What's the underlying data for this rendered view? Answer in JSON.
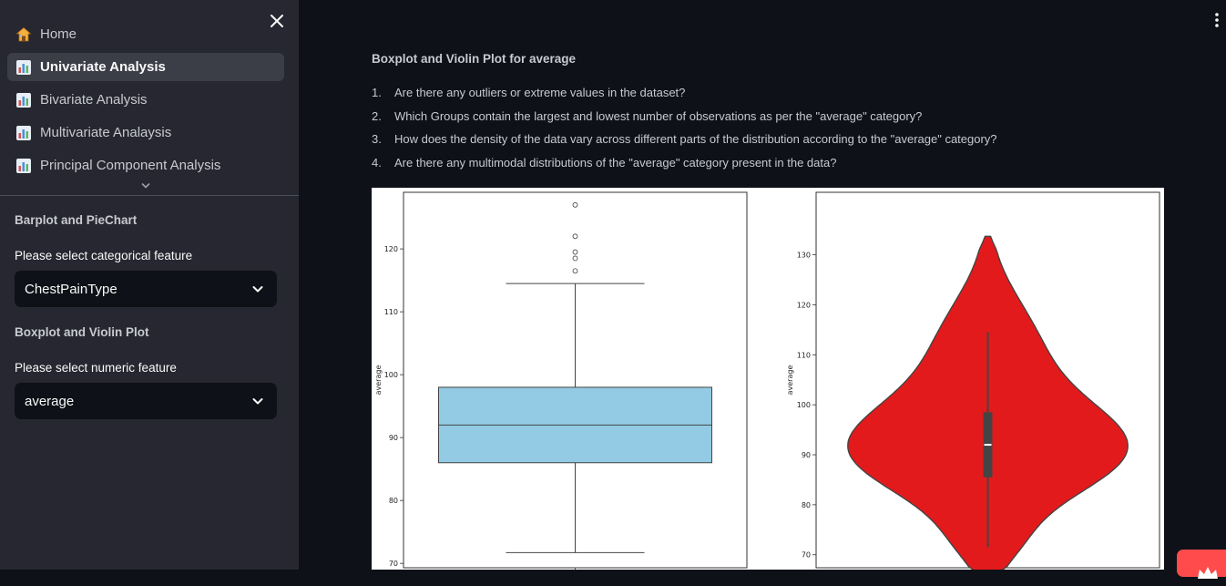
{
  "sidebar": {
    "nav": [
      {
        "label": "Home",
        "icon": "house-icon",
        "active": false
      },
      {
        "label": "Univariate Analysis",
        "icon": "bar-chart-icon",
        "active": true
      },
      {
        "label": "Bivariate Analysis",
        "icon": "bar-chart-icon",
        "active": false
      },
      {
        "label": "Multivariate Analaysis",
        "icon": "bar-chart-icon",
        "active": false
      },
      {
        "label": "Principal Component Analysis",
        "icon": "bar-chart-icon",
        "active": false
      }
    ],
    "barplot_heading": "Barplot and PieChart",
    "categorical_label": "Please select categorical feature",
    "categorical_value": "ChestPainType",
    "boxplot_heading": "Boxplot and Violin Plot",
    "numeric_label": "Please select numeric feature",
    "numeric_value": "average"
  },
  "main": {
    "title": "Boxplot and Violin Plot for average",
    "questions": [
      "Are there any outliers or extreme values in the dataset?",
      "Which Groups contain the largest and lowest number of observations as per the \"average\" category?",
      "How does the density of the data vary across different parts of the distribution according to the \"average\" category?",
      "Are there any multimodal distributions of the \"average\" category present in the data?"
    ]
  },
  "colors": {
    "sidebar_bg": "#262730",
    "main_bg": "#0e1117",
    "box_fill": "#92cbe3",
    "violin_fill": "#e31a1c",
    "accent": "#ff4b4b"
  },
  "chart_data": [
    {
      "type": "box",
      "ylabel": "average",
      "yticks": [
        70,
        80,
        90,
        100,
        110,
        120
      ],
      "ylim": [
        69.3,
        129.0
      ],
      "q1": 86,
      "median": 92,
      "q3": 98,
      "whisker_low": 71.7,
      "whisker_high": 114.5,
      "outliers": [
        116.5,
        118.5,
        119.5,
        122,
        127
      ]
    },
    {
      "type": "violin",
      "ylabel": "average",
      "yticks": [
        70,
        80,
        90,
        100,
        110,
        120,
        130
      ],
      "ylim": [
        67.4,
        142.5
      ],
      "range": [
        64.7,
        134
      ],
      "q1": 85.5,
      "median": 92,
      "q3": 98.5,
      "whisker_low": 71.5,
      "whisker_high": 114.5
    }
  ]
}
